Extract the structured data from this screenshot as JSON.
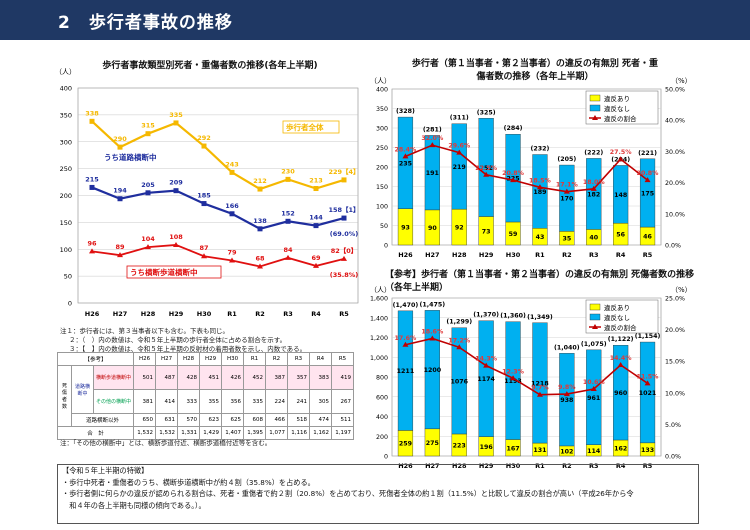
{
  "page_title": "2　歩行者事故の推移",
  "chart_data": [
    {
      "type": "line",
      "title": "歩行者事故類型別死者・重傷者数の推移(各年上半期)",
      "ylabel": "（人）",
      "ylim": [
        0,
        400
      ],
      "yticks": [
        "0",
        "50",
        "100",
        "150",
        "200",
        "250",
        "300",
        "350",
        "400"
      ],
      "categories": [
        "H26",
        "H27",
        "H28",
        "H29",
        "H30",
        "R1",
        "R2",
        "R3",
        "R4",
        "R5"
      ],
      "series": [
        {
          "name": "歩行者全体",
          "color": "#f5b800",
          "values": [
            338,
            290,
            315,
            335,
            292,
            243,
            212,
            230,
            213,
            229
          ],
          "labels": [
            "338",
            "290",
            "315",
            "335",
            "292",
            "243",
            "212",
            "230",
            "213",
            "229【4】"
          ]
        },
        {
          "name": "うち道路横断中",
          "color": "#1f2e9e",
          "values": [
            215,
            194,
            205,
            209,
            185,
            166,
            138,
            152,
            144,
            158
          ],
          "labels": [
            "215",
            "194",
            "205",
            "209",
            "185",
            "166",
            "138",
            "152",
            "144",
            "158【1】"
          ]
        },
        {
          "name": "うち横断歩道横断中",
          "color": "#e01010",
          "values": [
            96,
            89,
            104,
            108,
            87,
            79,
            68,
            84,
            69,
            82
          ],
          "labels": [
            "96",
            "89",
            "104",
            "108",
            "87",
            "79",
            "68",
            "84",
            "69",
            "82【0】"
          ]
        }
      ],
      "annotations": [
        "(69.0%)",
        "(35.8%)"
      ]
    },
    {
      "type": "bar",
      "title": "歩行者（第１当事者・第２当事者）の違反の有無別 死者・重傷者数の推移（各年上半期）",
      "ylabel": "（人）",
      "y2label": "（%）",
      "ylim": [
        0,
        400
      ],
      "y2lim": [
        0,
        50
      ],
      "yticks": [
        "0",
        "50",
        "100",
        "150",
        "200",
        "250",
        "300",
        "350",
        "400"
      ],
      "y2ticks": [
        "0.0%",
        "10.0%",
        "20.0%",
        "30.0%",
        "40.0%",
        "50.0%"
      ],
      "categories": [
        "H26",
        "H27",
        "H28",
        "H29",
        "H30",
        "R1",
        "R2",
        "R3",
        "R4",
        "R5"
      ],
      "series": [
        {
          "name": "違反あり",
          "color": "#ffff00",
          "values": [
            93,
            90,
            92,
            73,
            59,
            43,
            35,
            40,
            56,
            46
          ]
        },
        {
          "name": "違反なし",
          "color": "#00b0f0",
          "values": [
            235,
            191,
            219,
            252,
            225,
            189,
            170,
            182,
            148,
            175
          ]
        },
        {
          "name": "違反の割合",
          "color": "#c00000",
          "values": [
            28.4,
            32.0,
            29.6,
            22.5,
            20.8,
            18.5,
            17.1,
            18.0,
            27.5,
            20.8
          ],
          "labels": [
            "28.4%",
            "32.0%",
            "29.6%",
            "22.5%",
            "20.8%",
            "18.5%",
            "17.1%",
            "18.0%",
            "27.5%",
            "20.8%"
          ]
        }
      ],
      "totals": [
        "(328)",
        "(281)",
        "(311)",
        "(325)",
        "(284)",
        "(232)",
        "(205)",
        "(222)",
        "(204)",
        "(221)"
      ]
    },
    {
      "type": "bar",
      "title": "【参考】歩行者（第１当事者・第２当事者）の違反の有無別 死傷者数の推移（各年上半期）",
      "ylabel": "（人）",
      "y2label": "（%）",
      "ylim": [
        0,
        1600
      ],
      "y2lim": [
        0,
        25
      ],
      "yticks": [
        "0",
        "200",
        "400",
        "600",
        "800",
        "1,000",
        "1,200",
        "1,400",
        "1,600"
      ],
      "y2ticks": [
        "0.0%",
        "5.0%",
        "10.0%",
        "15.0%",
        "20.0%",
        "25.0%"
      ],
      "categories": [
        "H26",
        "H27",
        "H28",
        "H29",
        "H30",
        "R1",
        "R2",
        "R3",
        "R4",
        "R5"
      ],
      "series": [
        {
          "name": "違反あり",
          "color": "#ffff00",
          "values": [
            259,
            275,
            223,
            196,
            167,
            131,
            102,
            114,
            162,
            133
          ]
        },
        {
          "name": "違反なし",
          "color": "#00b0f0",
          "values": [
            1211,
            1200,
            1076,
            1174,
            1193,
            1218,
            938,
            961,
            960,
            1021
          ]
        },
        {
          "name": "違反の割合",
          "color": "#c00000",
          "values": [
            17.6,
            18.6,
            17.2,
            14.3,
            12.3,
            9.7,
            9.8,
            10.6,
            14.4,
            11.5
          ],
          "labels": [
            "17.6%",
            "18.6%",
            "17.2%",
            "14.3%",
            "12.3%",
            "9.7%",
            "9.8%",
            "10.6%",
            "14.4%",
            "11.5%"
          ]
        }
      ],
      "totals": [
        "(1,470)",
        "(1,475)",
        "(1,299)",
        "(1,370)",
        "(1,360)",
        "(1,349)",
        "(1,040)",
        "(1,075)",
        "(1,122)",
        "(1,154)"
      ]
    }
  ],
  "notes": [
    "注１：歩行者には、第３当事者以下も含む。下表も同じ。",
    "２：（　）内の数値は、令和５年上半期の歩行者全体に占める割合を示す。",
    "３：【　】内の数値は、令和５年上半期の反射材の着用者数を示し、内数である。"
  ],
  "ref_table": {
    "header": [
      "【参考】",
      "H26",
      "H27",
      "H28",
      "H29",
      "H30",
      "R1",
      "R2",
      "R3",
      "R4",
      "R5"
    ],
    "row_group": "死傷者数",
    "sub_group": "道路横断中",
    "rows": [
      {
        "label": "横断歩道横断中",
        "values": [
          "501",
          "487",
          "428",
          "451",
          "426",
          "452",
          "387",
          "357",
          "383",
          "419"
        ]
      },
      {
        "label": "その他の横断中",
        "values": [
          "381",
          "414",
          "333",
          "355",
          "356",
          "335",
          "224",
          "241",
          "305",
          "267"
        ]
      },
      {
        "label": "道路横断以外",
        "values": [
          "650",
          "631",
          "570",
          "623",
          "625",
          "608",
          "466",
          "518",
          "474",
          "511"
        ]
      },
      {
        "label": "合　計",
        "values": [
          "1,532",
          "1,532",
          "1,331",
          "1,429",
          "1,407",
          "1,395",
          "1,077",
          "1,116",
          "1,162",
          "1,197"
        ]
      }
    ]
  },
  "table_note": "注：「その他の横断中」とは、横断歩道付近、横断歩道橋付近等を含む。",
  "summary": [
    "【令和５年上半期の特徴】",
    "・歩行中死者・重傷者のうち、横断歩道横断中が約４割（35.8%）を占める。",
    "・歩行者側に何らかの違反が認められる割合は、死者・重傷者で約２割（20.8%）を占めており、死傷者全体の約１割（11.5%）と比較して違反の割合が高い（平成26年から令",
    "　和４年の各上半期も同様の傾向である。）。"
  ]
}
